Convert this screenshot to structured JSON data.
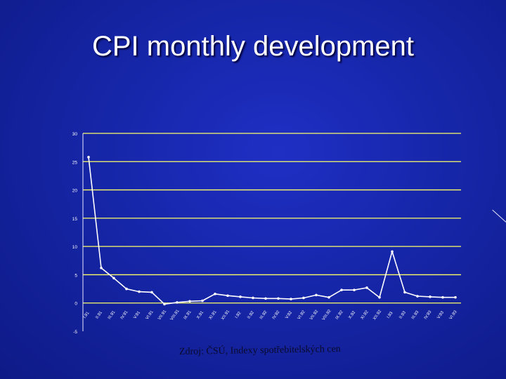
{
  "slide": {
    "title": "CPI monthly development",
    "source": "Zdroj: ČSÚ, Indexy spotřebitelských cen"
  },
  "colors": {
    "background": "#1626a8",
    "line": "#ffffff",
    "grid": "#ffff66",
    "text": "#ffffff"
  },
  "chart_data": {
    "type": "line",
    "title": "",
    "xlabel": "",
    "ylabel": "",
    "ylim": [
      -5,
      30
    ],
    "yticks": [
      -5,
      0,
      5,
      10,
      15,
      20,
      25,
      30
    ],
    "ytick_labels": [
      "-5",
      "0",
      "5",
      "10",
      "15",
      "20",
      "25",
      "30"
    ],
    "grid": true,
    "legend": "none",
    "categories": [
      "I.91",
      "II.91",
      "III.91",
      "IV.91",
      "V.91",
      "VI.91",
      "VII.91",
      "VIII.91",
      "IX.91",
      "X.91",
      "XI.91",
      "XII.91",
      "I.92",
      "II.92",
      "III.92",
      "IV.92",
      "V.92",
      "VI.92",
      "VII.92",
      "VIII.92",
      "IX.92",
      "X.92",
      "XI.92",
      "XII.92",
      "I.93",
      "II.93",
      "III.93",
      "IV.93",
      "V.93",
      "VI.93"
    ],
    "series": [
      {
        "values": [
          25.8,
          6.2,
          4.4,
          2.5,
          2.0,
          1.9,
          -0.2,
          0.1,
          0.3,
          0.4,
          1.6,
          1.3,
          1.1,
          0.9,
          0.8,
          0.8,
          0.7,
          0.9,
          1.4,
          1.0,
          2.3,
          2.3,
          2.7,
          1.0,
          9.1,
          1.9,
          1.2,
          1.1,
          1.0,
          1.0
        ]
      }
    ]
  }
}
